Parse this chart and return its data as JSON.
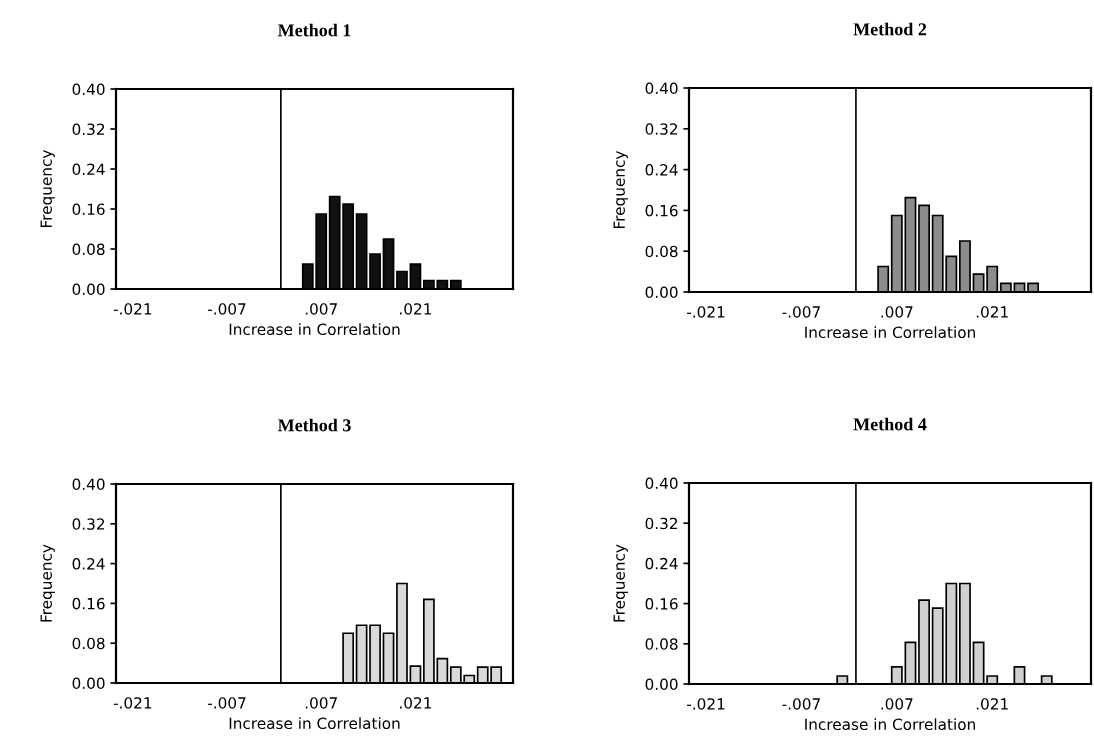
{
  "chart_data": [
    {
      "type": "histogram",
      "title": "Method 1",
      "xlabel": "Increase in Correlation",
      "ylabel": "Frequency",
      "color": "#111111",
      "bins": [
        0.004,
        0.006,
        0.008,
        0.01,
        0.012,
        0.014,
        0.016,
        0.018,
        0.02,
        0.022,
        0.024,
        0.026,
        0.028
      ],
      "values": [
        0.05,
        0.15,
        0.185,
        0.17,
        0.15,
        0.07,
        0.1,
        0.035,
        0.05,
        0.017,
        0.017,
        0.017
      ],
      "xlim": [
        -0.0235,
        0.0355
      ],
      "xticks": [
        {
          "value": -0.021,
          "label": "-.021"
        },
        {
          "value": -0.007,
          "label": "-.007"
        },
        {
          "value": 0.007,
          "label": ".007"
        },
        {
          "value": 0.021,
          "label": ".021"
        }
      ],
      "ylim": [
        0,
        0.4
      ],
      "yticks": [
        {
          "value": 0,
          "label": "0.00"
        },
        {
          "value": 0.08,
          "label": "0.08"
        },
        {
          "value": 0.16,
          "label": "0.16"
        },
        {
          "value": 0.24,
          "label": "0.24"
        },
        {
          "value": 0.32,
          "label": "0.32"
        },
        {
          "value": 0.4,
          "label": "0.40"
        }
      ],
      "ref_lines": [
        {
          "axis": "x",
          "value": 0.001,
          "color": "#000000"
        }
      ],
      "grid": false,
      "legend": false
    },
    {
      "type": "histogram",
      "title": "Method 2",
      "xlabel": "Increase in Correlation",
      "ylabel": "Frequency",
      "color": "#8c8c8c",
      "bins": [
        0.004,
        0.006,
        0.008,
        0.01,
        0.012,
        0.014,
        0.016,
        0.018,
        0.02,
        0.022,
        0.024,
        0.026,
        0.028
      ],
      "values": [
        0.05,
        0.15,
        0.185,
        0.17,
        0.15,
        0.07,
        0.1,
        0.035,
        0.05,
        0.017,
        0.017,
        0.017
      ],
      "xlim": [
        -0.0235,
        0.0355
      ],
      "xticks": [
        {
          "value": -0.021,
          "label": "-.021"
        },
        {
          "value": -0.007,
          "label": "-.007"
        },
        {
          "value": 0.007,
          "label": ".007"
        },
        {
          "value": 0.021,
          "label": ".021"
        }
      ],
      "ylim": [
        0,
        0.4
      ],
      "yticks": [
        {
          "value": 0,
          "label": "0.00"
        },
        {
          "value": 0.08,
          "label": "0.08"
        },
        {
          "value": 0.16,
          "label": "0.16"
        },
        {
          "value": 0.24,
          "label": "0.24"
        },
        {
          "value": 0.32,
          "label": "0.32"
        },
        {
          "value": 0.4,
          "label": "0.40"
        }
      ],
      "ref_lines": [
        {
          "axis": "x",
          "value": 0.001,
          "color": "#000000"
        }
      ],
      "grid": false,
      "legend": false
    },
    {
      "type": "histogram",
      "title": "Method 3",
      "xlabel": "Increase in Correlation",
      "ylabel": "Frequency",
      "color": "#d9d9d9",
      "bins": [
        0.01,
        0.012,
        0.014,
        0.016,
        0.018,
        0.02,
        0.022,
        0.024,
        0.026,
        0.028,
        0.03,
        0.032,
        0.034
      ],
      "values": [
        0.1,
        0.116,
        0.116,
        0.1,
        0.2,
        0.034,
        0.168,
        0.049,
        0.032,
        0.015,
        0.032,
        0.032
      ],
      "xlim": [
        -0.0235,
        0.0355
      ],
      "xticks": [
        {
          "value": -0.021,
          "label": "-.021"
        },
        {
          "value": -0.007,
          "label": "-.007"
        },
        {
          "value": 0.007,
          "label": ".007"
        },
        {
          "value": 0.021,
          "label": ".021"
        }
      ],
      "ylim": [
        0,
        0.4
      ],
      "yticks": [
        {
          "value": 0,
          "label": "0.00"
        },
        {
          "value": 0.08,
          "label": "0.08"
        },
        {
          "value": 0.16,
          "label": "0.16"
        },
        {
          "value": 0.24,
          "label": "0.24"
        },
        {
          "value": 0.32,
          "label": "0.32"
        },
        {
          "value": 0.4,
          "label": "0.40"
        }
      ],
      "ref_lines": [
        {
          "axis": "x",
          "value": 0.001,
          "color": "#000000"
        }
      ],
      "grid": false,
      "legend": false
    },
    {
      "type": "histogram",
      "title": "Method 4",
      "xlabel": "Increase in Correlation",
      "ylabel": "Frequency",
      "color": "#d0d0d0",
      "bins": [
        -0.002,
        0.0,
        0.002,
        0.004,
        0.006,
        0.008,
        0.01,
        0.012,
        0.014,
        0.016,
        0.018,
        0.02,
        0.022,
        0.024,
        0.026,
        0.028,
        0.03
      ],
      "values": [
        0.016,
        0,
        0,
        0,
        0.034,
        0.083,
        0.167,
        0.151,
        0.2,
        0.2,
        0.083,
        0.016,
        0,
        0.034,
        0,
        0.016
      ],
      "xlim": [
        -0.0235,
        0.0355
      ],
      "xticks": [
        {
          "value": -0.021,
          "label": "-.021"
        },
        {
          "value": -0.007,
          "label": "-.007"
        },
        {
          "value": 0.007,
          "label": ".007"
        },
        {
          "value": 0.021,
          "label": ".021"
        }
      ],
      "ylim": [
        0,
        0.4
      ],
      "yticks": [
        {
          "value": 0,
          "label": "0.00"
        },
        {
          "value": 0.08,
          "label": "0.08"
        },
        {
          "value": 0.16,
          "label": "0.16"
        },
        {
          "value": 0.24,
          "label": "0.24"
        },
        {
          "value": 0.32,
          "label": "0.32"
        },
        {
          "value": 0.4,
          "label": "0.40"
        }
      ],
      "ref_lines": [
        {
          "axis": "x",
          "value": 0.001,
          "color": "#000000"
        }
      ],
      "grid": false,
      "legend": false
    }
  ]
}
